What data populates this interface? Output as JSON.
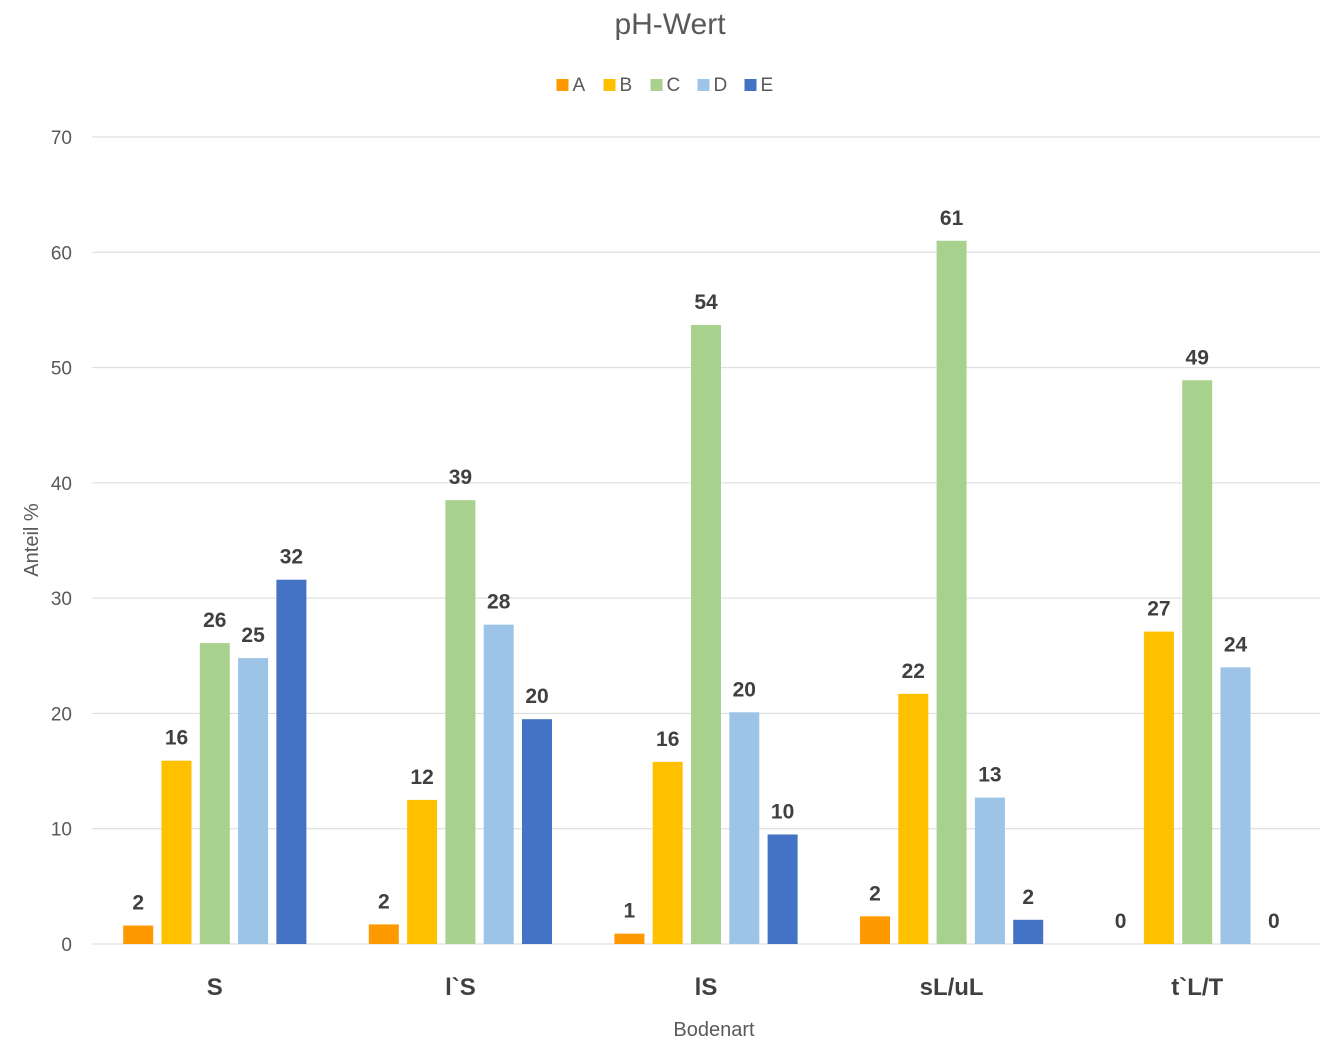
{
  "chart_data": {
    "type": "bar",
    "title": "pH-Wert",
    "xlabel": "Bodenart",
    "ylabel": "Anteil %",
    "ylim": [
      0,
      70
    ],
    "yticks": [
      0,
      10,
      20,
      30,
      40,
      50,
      60,
      70
    ],
    "grid": true,
    "legend_position": "top",
    "categories": [
      "S",
      "l`S",
      "lS",
      "sL/uL",
      "t`L/T"
    ],
    "series": [
      {
        "name": "A",
        "color": "#ff9900",
        "values": [
          1.6,
          1.7,
          0.9,
          2.4,
          0
        ],
        "labels": [
          "2",
          "2",
          "1",
          "2",
          "0"
        ]
      },
      {
        "name": "B",
        "color": "#ffc000",
        "values": [
          15.9,
          12.5,
          15.8,
          21.7,
          27.1
        ],
        "labels": [
          "16",
          "12",
          "16",
          "22",
          "27"
        ]
      },
      {
        "name": "C",
        "color": "#a9d18e",
        "values": [
          26.1,
          38.5,
          53.7,
          61.0,
          48.9
        ],
        "labels": [
          "26",
          "39",
          "54",
          "61",
          "49"
        ]
      },
      {
        "name": "D",
        "color": "#9dc3e6",
        "values": [
          24.8,
          27.7,
          20.1,
          12.7,
          24.0
        ],
        "labels": [
          "25",
          "28",
          "20",
          "13",
          "24"
        ]
      },
      {
        "name": "E",
        "color": "#4472c4",
        "values": [
          31.6,
          19.5,
          9.5,
          2.1,
          0
        ],
        "labels": [
          "32",
          "20",
          "10",
          "2",
          "0"
        ]
      }
    ]
  }
}
